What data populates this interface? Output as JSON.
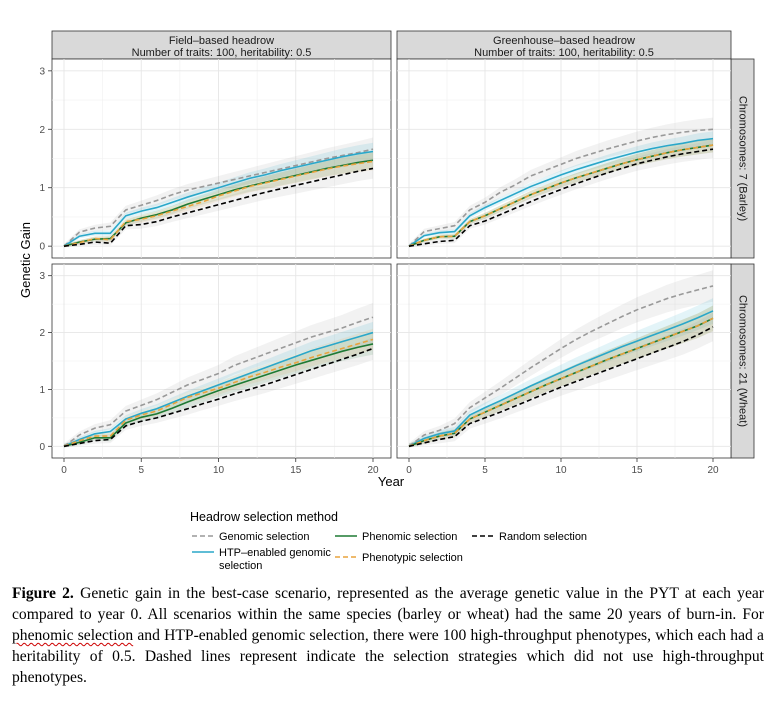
{
  "chart_data": {
    "type": "line",
    "layout": "faceted 2x2 grid",
    "xlabel": "Year",
    "ylabel": "Genetic Gain",
    "xlim": [
      0,
      20
    ],
    "ylim": [
      -0.1,
      3.1
    ],
    "x_ticks": [
      0,
      5,
      10,
      15,
      20
    ],
    "y_ticks": [
      0,
      1,
      2,
      3
    ],
    "column_strips": [
      [
        "Field–based headrow",
        "Number of traits: 100, heritability: 0.5"
      ],
      [
        "Greenhouse–based headrow",
        "Number of traits: 100, heritability: 0.5"
      ]
    ],
    "row_strips": [
      "Chromosomes: 7 (Barley)",
      "Chromosomes: 21 (Wheat)"
    ],
    "x": [
      0,
      1,
      2,
      3,
      4,
      5,
      6,
      7,
      8,
      9,
      10,
      11,
      12,
      13,
      14,
      15,
      16,
      17,
      18,
      19,
      20
    ],
    "legend": {
      "title": "Headrow selection method",
      "entries": [
        {
          "name": "Genomic selection",
          "color": "#999999",
          "dashed": true
        },
        {
          "name": "HTP–enabled genomic",
          "name_line2": "selection",
          "color": "#2aa7c9",
          "dashed": false
        },
        {
          "name": "Phenomic selection",
          "color": "#1e7a34",
          "dashed": false
        },
        {
          "name": "Phenotypic selection",
          "color": "#e8a33d",
          "dashed": true
        },
        {
          "name": "Random selection",
          "color": "#000000",
          "dashed": true
        }
      ]
    },
    "panels": [
      {
        "column": 0,
        "row": 0,
        "series": [
          {
            "name": "Genomic selection",
            "values": [
              0.0,
              0.24,
              0.31,
              0.34,
              0.62,
              0.7,
              0.78,
              0.88,
              0.96,
              1.02,
              1.08,
              1.14,
              1.2,
              1.26,
              1.32,
              1.38,
              1.44,
              1.5,
              1.55,
              1.6,
              1.66
            ],
            "band": 0.16
          },
          {
            "name": "HTP–enabled genomic selection",
            "values": [
              0.0,
              0.17,
              0.22,
              0.22,
              0.52,
              0.6,
              0.66,
              0.75,
              0.84,
              0.92,
              1.0,
              1.08,
              1.16,
              1.22,
              1.29,
              1.35,
              1.41,
              1.47,
              1.53,
              1.58,
              1.62
            ],
            "band": 0.12
          },
          {
            "name": "Phenomic selection",
            "values": [
              0.0,
              0.07,
              0.12,
              0.13,
              0.4,
              0.48,
              0.54,
              0.62,
              0.72,
              0.8,
              0.88,
              0.96,
              1.03,
              1.09,
              1.15,
              1.21,
              1.27,
              1.33,
              1.38,
              1.43,
              1.47
            ],
            "band": 0.12
          },
          {
            "name": "Phenotypic selection",
            "values": [
              0.0,
              0.06,
              0.13,
              0.11,
              0.42,
              0.46,
              0.52,
              0.6,
              0.68,
              0.76,
              0.86,
              0.94,
              1.02,
              1.08,
              1.14,
              1.2,
              1.26,
              1.32,
              1.37,
              1.41,
              1.45
            ],
            "band": 0.12
          },
          {
            "name": "Random selection",
            "values": [
              0.0,
              0.03,
              0.07,
              0.05,
              0.35,
              0.37,
              0.42,
              0.5,
              0.57,
              0.64,
              0.71,
              0.78,
              0.85,
              0.92,
              0.98,
              1.04,
              1.1,
              1.16,
              1.22,
              1.28,
              1.33
            ],
            "band": 0.14
          }
        ]
      },
      {
        "column": 1,
        "row": 0,
        "series": [
          {
            "name": "Genomic selection",
            "values": [
              0.0,
              0.25,
              0.3,
              0.35,
              0.62,
              0.75,
              0.92,
              1.05,
              1.2,
              1.3,
              1.4,
              1.5,
              1.58,
              1.66,
              1.73,
              1.8,
              1.86,
              1.91,
              1.95,
              1.98,
              2.0
            ],
            "band": 0.16
          },
          {
            "name": "HTP–enabled genomic selection",
            "values": [
              0.0,
              0.18,
              0.23,
              0.25,
              0.52,
              0.66,
              0.78,
              0.9,
              1.02,
              1.12,
              1.22,
              1.31,
              1.39,
              1.47,
              1.54,
              1.61,
              1.67,
              1.72,
              1.76,
              1.81,
              1.84
            ],
            "band": 0.1
          },
          {
            "name": "Phenomic selection",
            "values": [
              0.0,
              0.1,
              0.16,
              0.17,
              0.42,
              0.52,
              0.64,
              0.76,
              0.88,
              0.98,
              1.08,
              1.17,
              1.25,
              1.33,
              1.41,
              1.48,
              1.54,
              1.6,
              1.65,
              1.69,
              1.73
            ],
            "band": 0.1
          },
          {
            "name": "Phenotypic selection",
            "values": [
              0.0,
              0.1,
              0.16,
              0.17,
              0.42,
              0.52,
              0.64,
              0.76,
              0.88,
              0.98,
              1.08,
              1.17,
              1.25,
              1.33,
              1.41,
              1.48,
              1.54,
              1.6,
              1.65,
              1.69,
              1.73
            ],
            "band": 0.1
          },
          {
            "name": "Random selection",
            "values": [
              0.0,
              0.04,
              0.08,
              0.1,
              0.35,
              0.43,
              0.54,
              0.65,
              0.76,
              0.87,
              0.97,
              1.07,
              1.16,
              1.25,
              1.33,
              1.41,
              1.47,
              1.53,
              1.58,
              1.62,
              1.66
            ],
            "band": 0.12
          }
        ]
      },
      {
        "column": 0,
        "row": 1,
        "series": [
          {
            "name": "Genomic selection",
            "values": [
              0.0,
              0.2,
              0.32,
              0.38,
              0.62,
              0.72,
              0.82,
              0.95,
              1.08,
              1.18,
              1.28,
              1.42,
              1.52,
              1.62,
              1.72,
              1.82,
              1.92,
              2.0,
              2.08,
              2.18,
              2.27
            ],
            "band": 0.2
          },
          {
            "name": "HTP–enabled genomic selection",
            "values": [
              0.0,
              0.12,
              0.22,
              0.26,
              0.48,
              0.58,
              0.66,
              0.77,
              0.88,
              0.98,
              1.08,
              1.18,
              1.28,
              1.38,
              1.48,
              1.58,
              1.68,
              1.76,
              1.84,
              1.92,
              2.0
            ],
            "band": 0.15
          },
          {
            "name": "Phenomic selection",
            "values": [
              0.0,
              0.07,
              0.15,
              0.15,
              0.41,
              0.51,
              0.57,
              0.67,
              0.78,
              0.88,
              0.98,
              1.07,
              1.16,
              1.25,
              1.34,
              1.43,
              1.51,
              1.59,
              1.67,
              1.74,
              1.8
            ],
            "band": 0.15
          },
          {
            "name": "Phenotypic selection",
            "values": [
              0.0,
              0.1,
              0.18,
              0.18,
              0.46,
              0.55,
              0.62,
              0.74,
              0.86,
              0.94,
              1.02,
              1.12,
              1.22,
              1.3,
              1.39,
              1.47,
              1.56,
              1.64,
              1.72,
              1.8,
              1.88
            ],
            "band": 0.15
          },
          {
            "name": "Random selection",
            "values": [
              0.0,
              0.05,
              0.1,
              0.12,
              0.36,
              0.44,
              0.5,
              0.58,
              0.66,
              0.75,
              0.83,
              0.92,
              1.0,
              1.08,
              1.17,
              1.26,
              1.35,
              1.44,
              1.53,
              1.62,
              1.72
            ],
            "band": 0.16
          }
        ]
      },
      {
        "column": 1,
        "row": 1,
        "series": [
          {
            "name": "Genomic selection",
            "values": [
              0.0,
              0.2,
              0.28,
              0.4,
              0.68,
              0.85,
              1.02,
              1.2,
              1.38,
              1.55,
              1.72,
              1.88,
              2.02,
              2.15,
              2.28,
              2.4,
              2.5,
              2.6,
              2.68,
              2.75,
              2.82
            ],
            "band": 0.22
          },
          {
            "name": "HTP–enabled genomic selection",
            "values": [
              0.0,
              0.14,
              0.22,
              0.27,
              0.55,
              0.68,
              0.8,
              0.93,
              1.06,
              1.18,
              1.3,
              1.42,
              1.53,
              1.64,
              1.75,
              1.85,
              1.95,
              2.05,
              2.15,
              2.26,
              2.38
            ],
            "band": 0.18
          },
          {
            "name": "Phenomic selection",
            "values": [
              0.0,
              0.1,
              0.18,
              0.23,
              0.48,
              0.6,
              0.72,
              0.84,
              0.96,
              1.08,
              1.19,
              1.3,
              1.41,
              1.52,
              1.62,
              1.72,
              1.82,
              1.92,
              2.02,
              2.12,
              2.25
            ],
            "band": 0.18
          },
          {
            "name": "Phenotypic selection",
            "values": [
              0.0,
              0.1,
              0.18,
              0.23,
              0.48,
              0.6,
              0.72,
              0.84,
              0.96,
              1.08,
              1.19,
              1.3,
              1.41,
              1.52,
              1.62,
              1.72,
              1.82,
              1.92,
              2.02,
              2.12,
              2.25
            ],
            "band": 0.18
          },
          {
            "name": "Random selection",
            "values": [
              0.0,
              0.06,
              0.12,
              0.17,
              0.4,
              0.5,
              0.6,
              0.71,
              0.82,
              0.93,
              1.04,
              1.14,
              1.24,
              1.34,
              1.44,
              1.54,
              1.64,
              1.74,
              1.84,
              1.96,
              2.1
            ],
            "band": 0.2
          }
        ]
      }
    ]
  },
  "caption": {
    "label": "Figure 2.",
    "part1": " Genetic gain in the best-case scenario, represented as the average genetic value in the PYT at each year compared to year 0. All scenarios within the same species (barley or wheat) had the same 20 years of burn-in. For ",
    "underlined1": "phenomic selection",
    "part2": " and HTP-enabled genomic selection, there were 100 high-throughput phenotypes, which each had a heritability of 0.5. Dashed lines represent indicate the selection strategies which did not use high-throughput phenotypes."
  }
}
